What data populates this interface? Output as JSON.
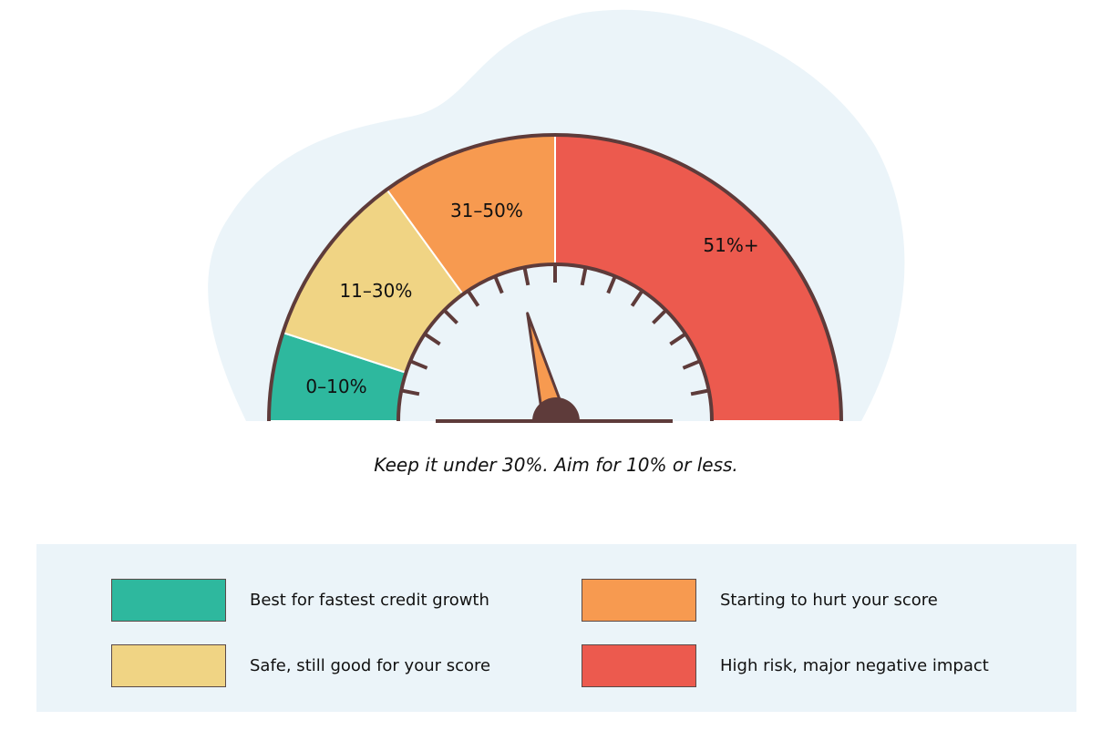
{
  "chart_data": {
    "type": "gauge",
    "range": [
      0,
      100
    ],
    "segments": [
      {
        "label": "0–10%",
        "from": 0,
        "to": 10,
        "color": "#2eb89e"
      },
      {
        "label": "11–30%",
        "from": 10,
        "to": 30,
        "color": "#f0d484"
      },
      {
        "label": "31–50%",
        "from": 30,
        "to": 50,
        "color": "#f79a50"
      },
      {
        "label": "51%+",
        "from": 50,
        "to": 100,
        "color": "#ec5a4e"
      }
    ],
    "needle_value": 42,
    "tick_count": 15,
    "caption": "Keep it under 30%. Aim for 10% or less."
  },
  "legend": [
    {
      "text": "Best for fastest credit growth",
      "color": "#2eb89e"
    },
    {
      "text": "Safe, still good for your score",
      "color": "#f0d484"
    },
    {
      "text": "Starting to hurt your score",
      "color": "#f79a50"
    },
    {
      "text": "High risk, major negative impact",
      "color": "#ec5a4e"
    }
  ],
  "colors": {
    "outline": "#5e3b3a",
    "background": "#ebf4f9"
  }
}
